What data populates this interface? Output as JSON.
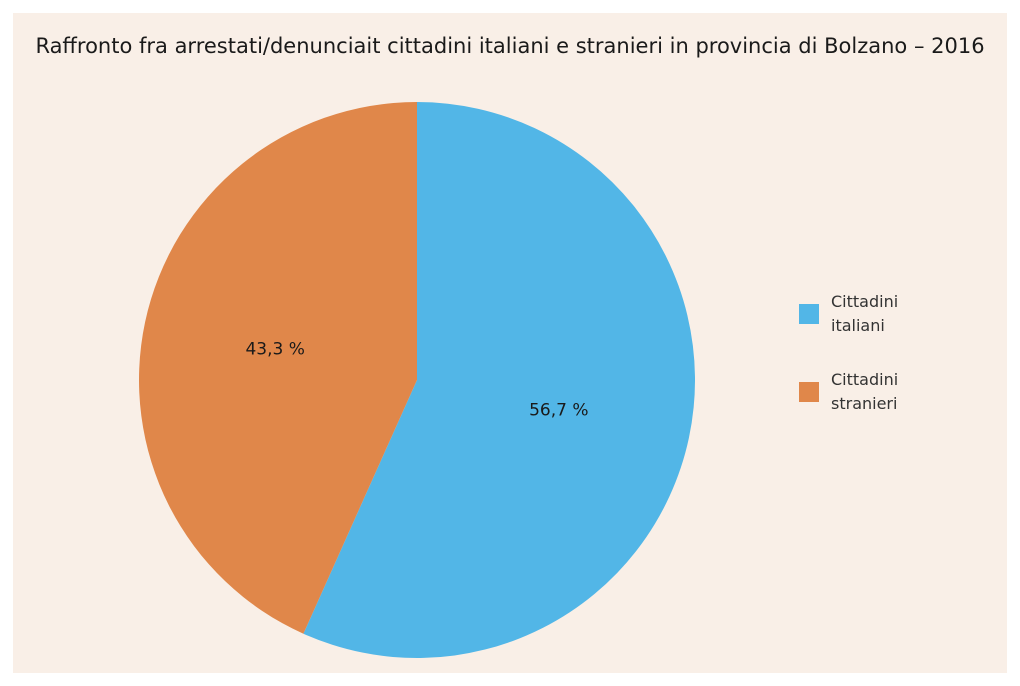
{
  "chart_data": {
    "type": "pie",
    "title": "Raffronto fra arrestati/denunciait cittadini italiani e stranieri in provincia di Bolzano – 2016",
    "categories": [
      "Cittadini italiani",
      "Cittadini stranieri"
    ],
    "values": [
      56.7,
      43.3
    ],
    "value_labels": [
      "56,7 %",
      "43,3 %"
    ],
    "colors": [
      "#52b6e7",
      "#e0874a"
    ],
    "legend_position": "right",
    "start_angle_deg": 0,
    "direction": "clockwise"
  }
}
